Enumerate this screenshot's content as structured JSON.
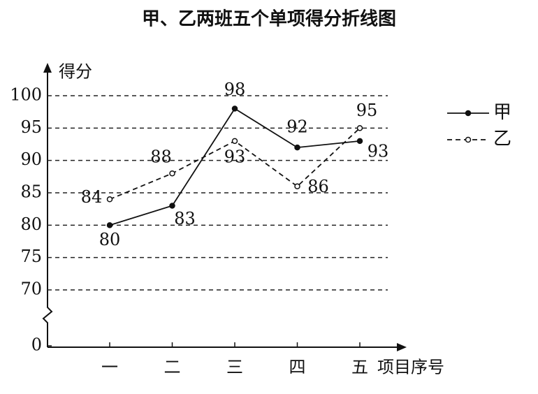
{
  "chart_data": {
    "type": "line",
    "title": "甲、乙两班五个单项得分折线图",
    "y_label": "得分",
    "x_label": "项目序号",
    "categories": [
      "一",
      "二",
      "三",
      "四",
      "五"
    ],
    "series": [
      {
        "name": "甲",
        "color": "#111111",
        "line_style": "solid",
        "marker": "filled",
        "values": [
          80,
          83,
          98,
          92,
          93
        ]
      },
      {
        "name": "乙",
        "color": "#111111",
        "line_style": "dashed",
        "marker": "open",
        "values": [
          84,
          88,
          93,
          86,
          95
        ]
      }
    ],
    "ylim": [
      0,
      100
    ],
    "yticks": [
      0,
      70,
      75,
      80,
      85,
      90,
      95,
      100
    ],
    "y_axis_break": true,
    "grid": true,
    "legend": "right"
  }
}
